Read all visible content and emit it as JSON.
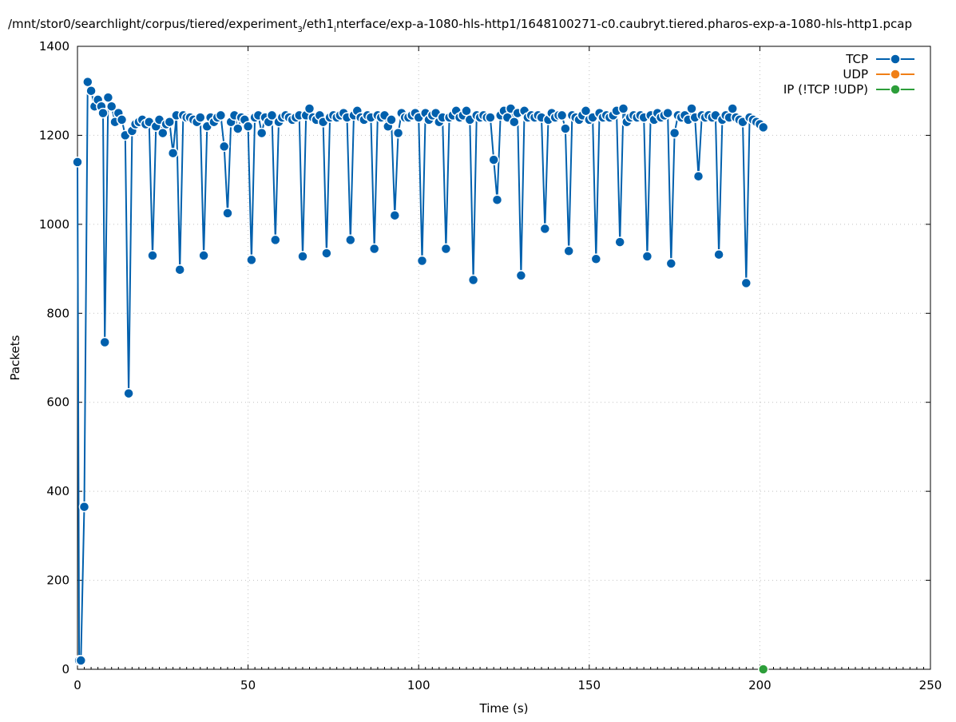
{
  "chart_data": {
    "type": "line",
    "title": "/mnt/stor0/searchlight/corpus/tiered/experiment",
    "title_sub": "3",
    "title_mid": "/eth1",
    "title_sub2": "i",
    "title_end": "nterface/exp-a-1080-hls-http1/1648100271-c0.caubryt.tiered.pharos-exp-a-1080-hls-http1.pcap",
    "xlabel": "Time (s)",
    "ylabel": "Packets",
    "xlim": [
      0,
      250
    ],
    "ylim": [
      0,
      1400
    ],
    "xticks": [
      0,
      50,
      100,
      150,
      200,
      250
    ],
    "yticks": [
      0,
      200,
      400,
      600,
      800,
      1000,
      1200,
      1400
    ],
    "grid": true,
    "legend_position": "top-right",
    "colors": {
      "TCP": "#0060ad",
      "UDP": "#f07f16",
      "IP": "#2d9e3a"
    },
    "series": [
      {
        "name": "TCP",
        "points": [
          [
            0,
            1140
          ],
          [
            0.5,
            20
          ],
          [
            1,
            20
          ],
          [
            2,
            365
          ],
          [
            3,
            1320
          ],
          [
            4,
            1300
          ],
          [
            5,
            1265
          ],
          [
            6,
            1280
          ],
          [
            7,
            1265
          ],
          [
            7.5,
            1250
          ],
          [
            8,
            735
          ],
          [
            9,
            1285
          ],
          [
            10,
            1265
          ],
          [
            11,
            1230
          ],
          [
            12,
            1250
          ],
          [
            13,
            1235
          ],
          [
            14,
            1200
          ],
          [
            15,
            620
          ],
          [
            16,
            1210
          ],
          [
            17,
            1225
          ],
          [
            18,
            1230
          ],
          [
            19,
            1235
          ],
          [
            20,
            1225
          ],
          [
            21,
            1230
          ],
          [
            22,
            930
          ],
          [
            23,
            1220
          ],
          [
            24,
            1235
          ],
          [
            25,
            1205
          ],
          [
            26,
            1225
          ],
          [
            27,
            1230
          ],
          [
            28,
            1160
          ],
          [
            29,
            1245
          ],
          [
            30,
            898
          ],
          [
            31,
            1245
          ],
          [
            32,
            1240
          ],
          [
            33,
            1240
          ],
          [
            34,
            1235
          ],
          [
            35,
            1230
          ],
          [
            36,
            1240
          ],
          [
            37,
            930
          ],
          [
            38,
            1220
          ],
          [
            39,
            1240
          ],
          [
            40,
            1230
          ],
          [
            41,
            1240
          ],
          [
            42,
            1245
          ],
          [
            43,
            1175
          ],
          [
            44,
            1025
          ],
          [
            45,
            1230
          ],
          [
            46,
            1245
          ],
          [
            47,
            1215
          ],
          [
            48,
            1240
          ],
          [
            49,
            1235
          ],
          [
            50,
            1220
          ],
          [
            51,
            920
          ],
          [
            52,
            1240
          ],
          [
            53,
            1245
          ],
          [
            54,
            1205
          ],
          [
            55,
            1240
          ],
          [
            56,
            1230
          ],
          [
            57,
            1245
          ],
          [
            58,
            965
          ],
          [
            59,
            1230
          ],
          [
            60,
            1240
          ],
          [
            61,
            1245
          ],
          [
            62,
            1240
          ],
          [
            63,
            1235
          ],
          [
            64,
            1240
          ],
          [
            65,
            1245
          ],
          [
            66,
            928
          ],
          [
            67,
            1245
          ],
          [
            68,
            1260
          ],
          [
            69,
            1240
          ],
          [
            70,
            1235
          ],
          [
            71,
            1245
          ],
          [
            72,
            1230
          ],
          [
            73,
            935
          ],
          [
            74,
            1240
          ],
          [
            75,
            1245
          ],
          [
            76,
            1240
          ],
          [
            77,
            1245
          ],
          [
            78,
            1250
          ],
          [
            79,
            1240
          ],
          [
            80,
            965
          ],
          [
            81,
            1245
          ],
          [
            82,
            1255
          ],
          [
            83,
            1240
          ],
          [
            84,
            1235
          ],
          [
            85,
            1245
          ],
          [
            86,
            1240
          ],
          [
            87,
            945
          ],
          [
            88,
            1245
          ],
          [
            89,
            1240
          ],
          [
            90,
            1245
          ],
          [
            91,
            1220
          ],
          [
            92,
            1235
          ],
          [
            93,
            1020
          ],
          [
            94,
            1205
          ],
          [
            95,
            1250
          ],
          [
            96,
            1240
          ],
          [
            97,
            1240
          ],
          [
            98,
            1245
          ],
          [
            99,
            1250
          ],
          [
            100,
            1240
          ],
          [
            101,
            918
          ],
          [
            102,
            1250
          ],
          [
            103,
            1235
          ],
          [
            104,
            1245
          ],
          [
            105,
            1250
          ],
          [
            106,
            1230
          ],
          [
            107,
            1240
          ],
          [
            108,
            945
          ],
          [
            109,
            1240
          ],
          [
            110,
            1245
          ],
          [
            111,
            1255
          ],
          [
            112,
            1240
          ],
          [
            113,
            1245
          ],
          [
            114,
            1255
          ],
          [
            115,
            1235
          ],
          [
            116,
            875
          ],
          [
            117,
            1245
          ],
          [
            118,
            1240
          ],
          [
            119,
            1245
          ],
          [
            120,
            1240
          ],
          [
            121,
            1240
          ],
          [
            122,
            1145
          ],
          [
            123,
            1055
          ],
          [
            124,
            1245
          ],
          [
            125,
            1255
          ],
          [
            126,
            1240
          ],
          [
            127,
            1260
          ],
          [
            128,
            1230
          ],
          [
            129,
            1250
          ],
          [
            130,
            885
          ],
          [
            131,
            1255
          ],
          [
            132,
            1240
          ],
          [
            133,
            1245
          ],
          [
            134,
            1240
          ],
          [
            135,
            1245
          ],
          [
            136,
            1240
          ],
          [
            137,
            990
          ],
          [
            138,
            1235
          ],
          [
            139,
            1250
          ],
          [
            140,
            1240
          ],
          [
            141,
            1245
          ],
          [
            142,
            1245
          ],
          [
            143,
            1215
          ],
          [
            144,
            940
          ],
          [
            145,
            1245
          ],
          [
            146,
            1240
          ],
          [
            147,
            1235
          ],
          [
            148,
            1245
          ],
          [
            149,
            1255
          ],
          [
            150,
            1235
          ],
          [
            151,
            1240
          ],
          [
            152,
            922
          ],
          [
            153,
            1250
          ],
          [
            154,
            1240
          ],
          [
            155,
            1245
          ],
          [
            156,
            1240
          ],
          [
            157,
            1245
          ],
          [
            158,
            1255
          ],
          [
            159,
            960
          ],
          [
            160,
            1260
          ],
          [
            161,
            1230
          ],
          [
            162,
            1240
          ],
          [
            163,
            1245
          ],
          [
            164,
            1240
          ],
          [
            165,
            1245
          ],
          [
            166,
            1240
          ],
          [
            167,
            928
          ],
          [
            168,
            1245
          ],
          [
            169,
            1235
          ],
          [
            170,
            1250
          ],
          [
            171,
            1240
          ],
          [
            172,
            1245
          ],
          [
            173,
            1250
          ],
          [
            174,
            912
          ],
          [
            175,
            1205
          ],
          [
            176,
            1245
          ],
          [
            177,
            1240
          ],
          [
            178,
            1245
          ],
          [
            179,
            1235
          ],
          [
            180,
            1260
          ],
          [
            181,
            1240
          ],
          [
            182,
            1108
          ],
          [
            183,
            1245
          ],
          [
            184,
            1240
          ],
          [
            185,
            1245
          ],
          [
            186,
            1240
          ],
          [
            187,
            1245
          ],
          [
            188,
            932
          ],
          [
            189,
            1235
          ],
          [
            190,
            1245
          ],
          [
            191,
            1240
          ],
          [
            192,
            1260
          ],
          [
            193,
            1240
          ],
          [
            194,
            1235
          ],
          [
            195,
            1230
          ],
          [
            196,
            868
          ],
          [
            197,
            1240
          ],
          [
            198,
            1235
          ],
          [
            199,
            1230
          ],
          [
            200,
            1225
          ],
          [
            201,
            1218
          ]
        ]
      },
      {
        "name": "UDP",
        "points": []
      },
      {
        "name": "IP (!TCP  !UDP)",
        "points": [
          [
            201,
            0
          ]
        ]
      }
    ]
  }
}
